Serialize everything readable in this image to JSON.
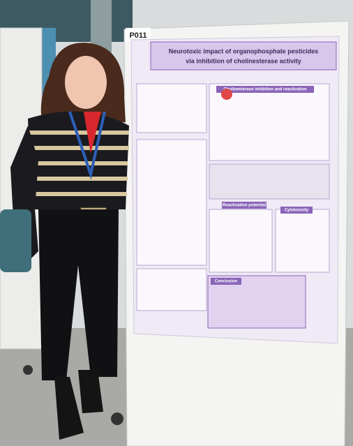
{
  "poster_board": {
    "label": "P011"
  },
  "poster": {
    "title_lines": [
      "Neurotoxic impact of organophosphate pesticides",
      "via inhibition of cholinesterase activity"
    ],
    "sections": [
      "Cholinesterase inhibition and reactivation",
      "Reactivation potential",
      "Cytotoxicity",
      "Conclusion"
    ]
  }
}
